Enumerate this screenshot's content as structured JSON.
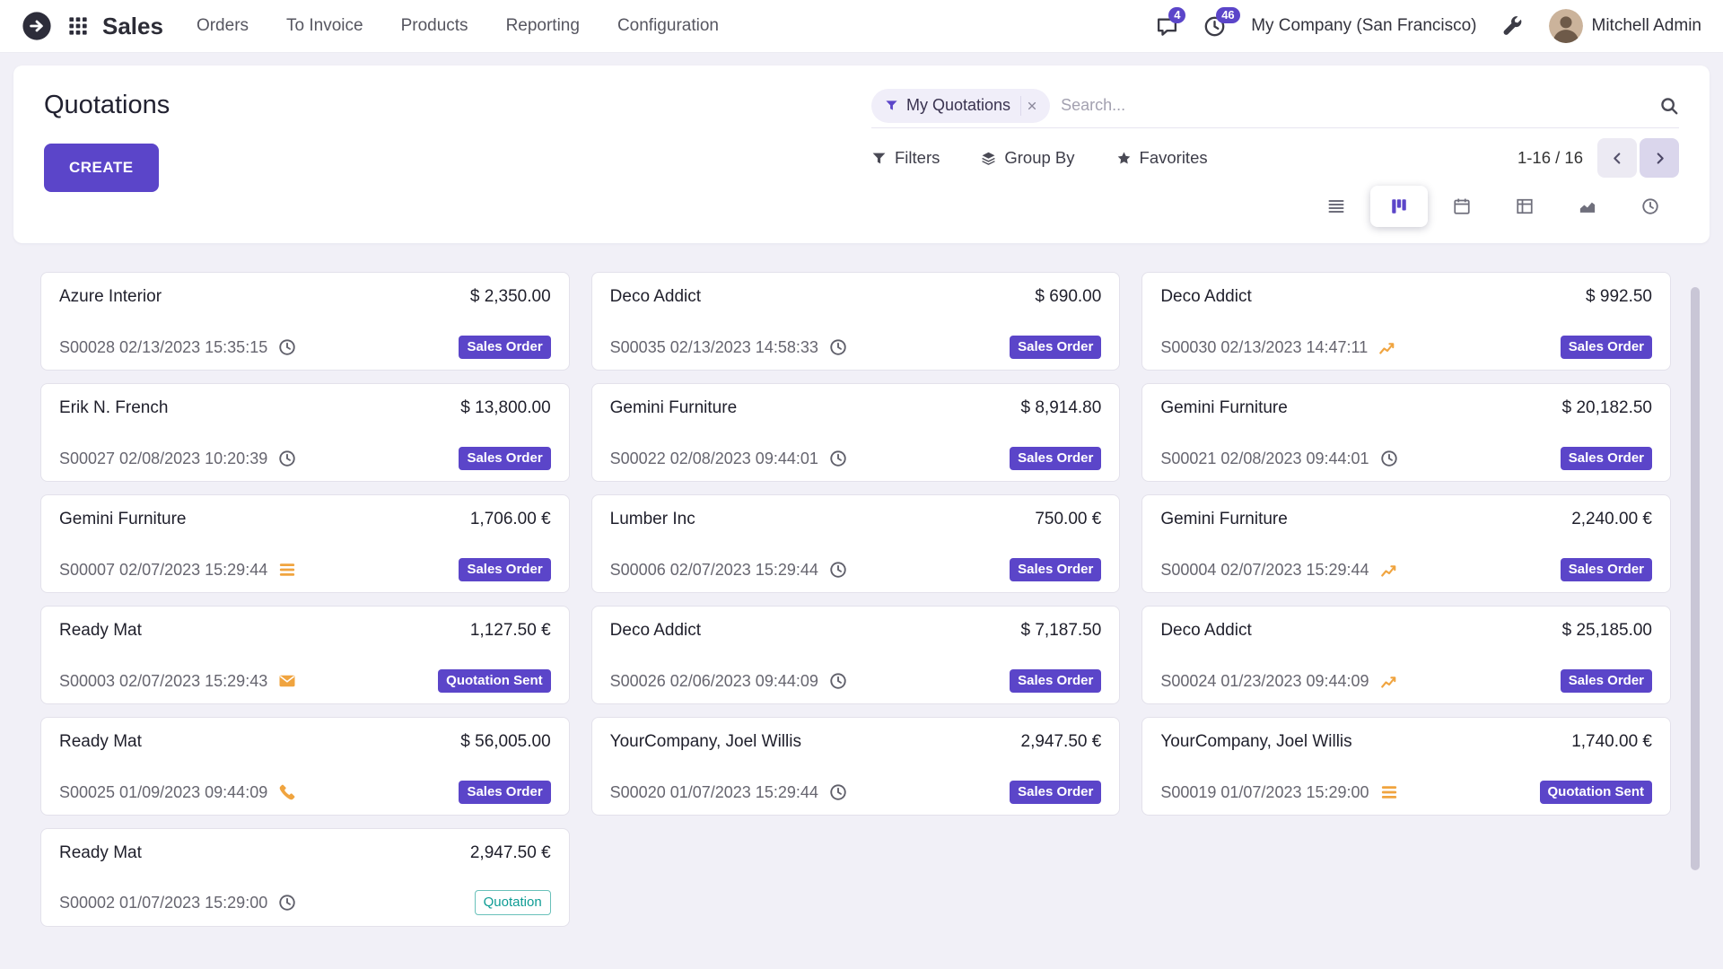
{
  "colors": {
    "accent": "#5b45c9",
    "activity_orange": "#f0a43f",
    "quotation_teal": "#0e9c94",
    "page_background": "#f1f0f7"
  },
  "icons": {
    "home-icon": "circle-arrow",
    "apps-grid-icon": "3x3-grid",
    "messages-icon": "speech-bubble",
    "activities-icon": "clock",
    "developer-tools-icon": "wrench",
    "search-icon": "magnifier",
    "filter-icon": "funnel",
    "group-by-icon": "layers",
    "favorites-icon": "star",
    "clock-activity-icon": "clock",
    "list-activity-icon": "bars",
    "envelope-activity-icon": "envelope",
    "phone-activity-icon": "phone",
    "chart-activity-icon": "line-chart"
  },
  "topbar": {
    "app_name": "Sales",
    "menu_items": [
      "Orders",
      "To Invoice",
      "Products",
      "Reporting",
      "Configuration"
    ],
    "messages_badge": "4",
    "activities_badge": "46",
    "company_name": "My Company (San Francisco)",
    "user_name": "Mitchell Admin"
  },
  "control_panel": {
    "title": "Quotations",
    "create_button": "CREATE",
    "search_facet": "My Quotations",
    "search_placeholder": "Search...",
    "filters_label": "Filters",
    "group_by_label": "Group By",
    "favorites_label": "Favorites",
    "pager": "1-16 / 16"
  },
  "view_switcher": {
    "active": "kanban",
    "views": [
      "list",
      "kanban",
      "calendar",
      "pivot",
      "graph",
      "activity"
    ]
  },
  "kanban": {
    "cards": [
      {
        "partner": "Azure Interior",
        "amount": "$ 2,350.00",
        "reference": "S00028 02/13/2023 15:35:15",
        "activity_icon": "clock",
        "badge": "Sales Order",
        "badge_style": "filled"
      },
      {
        "partner": "Deco Addict",
        "amount": "$ 690.00",
        "reference": "S00035 02/13/2023 14:58:33",
        "activity_icon": "clock",
        "badge": "Sales Order",
        "badge_style": "filled"
      },
      {
        "partner": "Deco Addict",
        "amount": "$ 992.50",
        "reference": "S00030 02/13/2023 14:47:11",
        "activity_icon": "chart",
        "badge": "Sales Order",
        "badge_style": "filled"
      },
      {
        "partner": "Erik N. French",
        "amount": "$ 13,800.00",
        "reference": "S00027 02/08/2023 10:20:39",
        "activity_icon": "clock",
        "badge": "Sales Order",
        "badge_style": "filled"
      },
      {
        "partner": "Gemini Furniture",
        "amount": "$ 8,914.80",
        "reference": "S00022 02/08/2023 09:44:01",
        "activity_icon": "clock",
        "badge": "Sales Order",
        "badge_style": "filled"
      },
      {
        "partner": "Gemini Furniture",
        "amount": "$ 20,182.50",
        "reference": "S00021 02/08/2023 09:44:01",
        "activity_icon": "clock",
        "badge": "Sales Order",
        "badge_style": "filled"
      },
      {
        "partner": "Gemini Furniture",
        "amount": "1,706.00 €",
        "reference": "S00007 02/07/2023 15:29:44",
        "activity_icon": "list",
        "badge": "Sales Order",
        "badge_style": "filled"
      },
      {
        "partner": "Lumber Inc",
        "amount": "750.00 €",
        "reference": "S00006 02/07/2023 15:29:44",
        "activity_icon": "clock",
        "badge": "Sales Order",
        "badge_style": "filled"
      },
      {
        "partner": "Gemini Furniture",
        "amount": "2,240.00 €",
        "reference": "S00004 02/07/2023 15:29:44",
        "activity_icon": "chart",
        "badge": "Sales Order",
        "badge_style": "filled"
      },
      {
        "partner": "Ready Mat",
        "amount": "1,127.50 €",
        "reference": "S00003 02/07/2023 15:29:43",
        "activity_icon": "envelope",
        "badge": "Quotation Sent",
        "badge_style": "filled"
      },
      {
        "partner": "Deco Addict",
        "amount": "$ 7,187.50",
        "reference": "S00026 02/06/2023 09:44:09",
        "activity_icon": "clock",
        "badge": "Sales Order",
        "badge_style": "filled"
      },
      {
        "partner": "Deco Addict",
        "amount": "$ 25,185.00",
        "reference": "S00024 01/23/2023 09:44:09",
        "activity_icon": "chart",
        "badge": "Sales Order",
        "badge_style": "filled"
      },
      {
        "partner": "Ready Mat",
        "amount": "$ 56,005.00",
        "reference": "S00025 01/09/2023 09:44:09",
        "activity_icon": "phone",
        "badge": "Sales Order",
        "badge_style": "filled"
      },
      {
        "partner": "YourCompany, Joel Willis",
        "amount": "2,947.50 €",
        "reference": "S00020 01/07/2023 15:29:44",
        "activity_icon": "clock",
        "badge": "Sales Order",
        "badge_style": "filled"
      },
      {
        "partner": "YourCompany, Joel Willis",
        "amount": "1,740.00 €",
        "reference": "S00019 01/07/2023 15:29:00",
        "activity_icon": "list",
        "badge": "Quotation Sent",
        "badge_style": "filled"
      },
      {
        "partner": "Ready Mat",
        "amount": "2,947.50 €",
        "reference": "S00002 01/07/2023 15:29:00",
        "activity_icon": "clock",
        "badge": "Quotation",
        "badge_style": "outline"
      }
    ]
  }
}
